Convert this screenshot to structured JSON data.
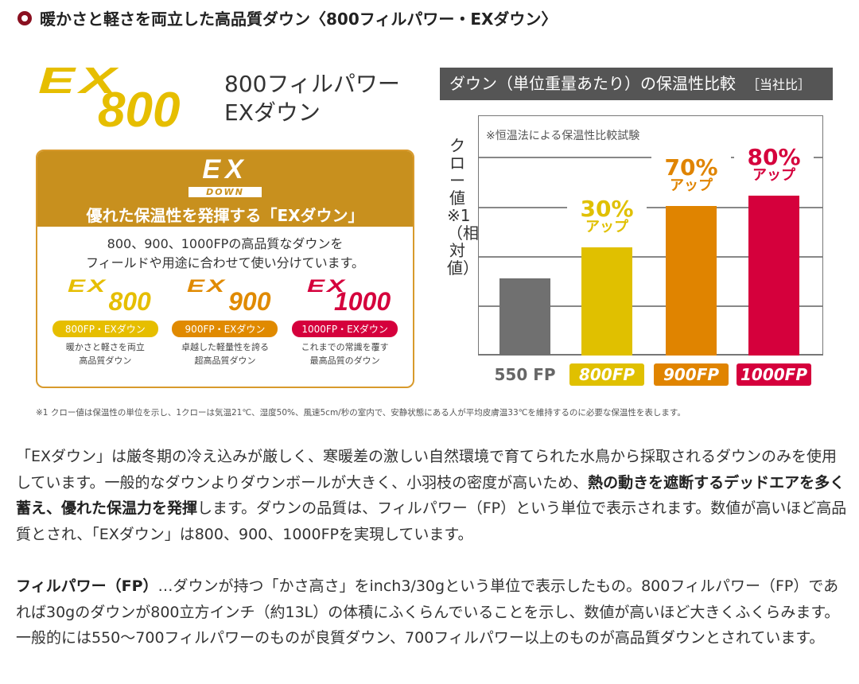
{
  "section_title": "暖かさと軽さを両立した高品質ダウン〈800フィルパワー・EXダウン〉",
  "hero": {
    "logo_ex": "EX",
    "logo_num": "800",
    "name_line1": "800フィルパワー",
    "name_line2": "EXダウン"
  },
  "ex_box": {
    "logo": "EX",
    "logo_sub": "DOWN",
    "tagline": "優れた保温性を発揮する「EXダウン」",
    "desc_line1": "800、900、1000FPの高品質なダウンを",
    "desc_line2": "フィールドや用途に合わせて使い分けています。",
    "variants": [
      {
        "ex": "EX",
        "num": "800",
        "pill": "800FP・EXダウン",
        "sub1": "暖かさと軽さを両立",
        "sub2": "高品質ダウン",
        "color": "#e6be00"
      },
      {
        "ex": "EX",
        "num": "900",
        "pill": "900FP・EXダウン",
        "sub1": "卓越した軽量性を誇る",
        "sub2": "超高品質ダウン",
        "color": "#e08a00"
      },
      {
        "ex": "EX",
        "num": "1000",
        "pill": "1000FP・EXダウン",
        "sub1": "これまでの常識を覆す",
        "sub2": "最高品質のダウン",
        "color": "#d5003c"
      }
    ]
  },
  "chart_data": {
    "type": "bar",
    "title": "ダウン（単位重量あたり）の保温性比較",
    "title_note": "［当社比］",
    "note": "※恒温法による保温性比較試験",
    "ylabel": "クロー値※1（相対値）",
    "categories": [
      "550 FP",
      "800FP",
      "900FP",
      "1000FP"
    ],
    "values": [
      100,
      130,
      170,
      180
    ],
    "value_unit": "relative (550 FP = 100)",
    "labels": [
      null,
      {
        "pct": "30%",
        "text": "アップ"
      },
      {
        "pct": "70%",
        "text": "アップ"
      },
      {
        "pct": "80%",
        "text": "アップ"
      }
    ],
    "colors": [
      "#707070",
      "#e0c000",
      "#e08400",
      "#d5003c"
    ],
    "grid": true
  },
  "footnote": "※1 クロー値は保温性の単位を示し、1クローは気温21℃、湿度50%、風速5cm/秒の室内で、安静状態にある人が平均皮膚温33℃を維持するのに必要な保温性を表します。",
  "body": {
    "p1_a": "「EXダウン」は厳冬期の冷え込みが厳しく、寒暖差の激しい自然環境で育てられた水鳥から採取されるダウンのみを使用しています。一般的なダウンよりダウンボールが大きく、小羽枝の密度が高いため、",
    "p1_bold": "熱の動きを遮断するデッドエアを多く蓄え、優れた保温力を発揮",
    "p1_b": "します。ダウンの品質は、フィルパワー（FP）という単位で表示されます。数値が高いほど高品質とされ、「EXダウン」は800、900、1000FPを実現しています。",
    "p2_bold": "フィルパワー（FP）",
    "p2": "…ダウンが持つ「かさ高さ」をinch3/30gという単位で表示したもの。800フィルパワー（FP）であれば30gのダウンが800立方インチ（約13L）の体積にふくらんでいることを示し、数値が高いほど大きくふくらみます。一般的には550〜700フィルパワーのものが良質ダウン、700フィルパワー以上のものが高品質ダウンとされています。"
  }
}
